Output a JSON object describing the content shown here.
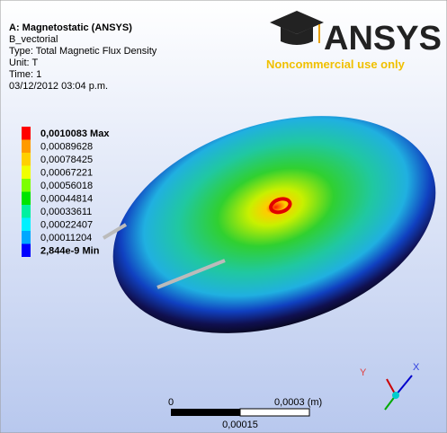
{
  "header": {
    "title": "A: Magnetostatic (ANSYS)",
    "lines": [
      "B_vectorial",
      "Type: Total Magnetic Flux Density",
      "Unit: T",
      "Time: 1",
      "03/12/2012 03:04 p.m."
    ]
  },
  "logo": {
    "brand": "ANSYS",
    "note": "Noncommercial use only"
  },
  "legend": {
    "items": [
      {
        "label": "0,0010083 Max",
        "color": "#ff0000"
      },
      {
        "label": "0,00089628",
        "color": "#ff9a00"
      },
      {
        "label": "0,00078425",
        "color": "#ffd000"
      },
      {
        "label": "0,00067221",
        "color": "#f0ff00"
      },
      {
        "label": "0,00056018",
        "color": "#7cff00"
      },
      {
        "label": "0,00044814",
        "color": "#00e400"
      },
      {
        "label": "0,00033611",
        "color": "#00f0a0"
      },
      {
        "label": "0,00022407",
        "color": "#00f0ff"
      },
      {
        "label": "0,00011204",
        "color": "#00a8ff"
      },
      {
        "label": "2,844e-9 Min",
        "color": "#0000ff"
      }
    ]
  },
  "scale": {
    "start": "0",
    "end": "0,0003 (m)",
    "mid": "0,00015"
  },
  "triad": {
    "x": "X",
    "y": "Y"
  }
}
